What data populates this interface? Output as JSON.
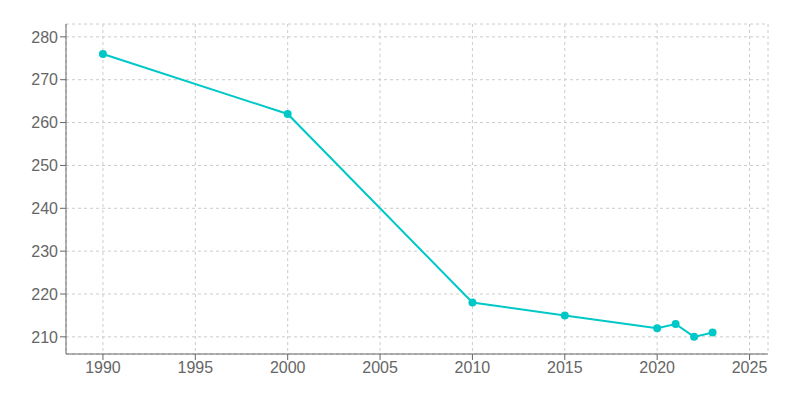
{
  "chart_data": {
    "type": "line",
    "x": [
      1990,
      2000,
      2010,
      2015,
      2020,
      2021,
      2022,
      2023
    ],
    "values": [
      276,
      262,
      218,
      215,
      212,
      213,
      210,
      211
    ],
    "color": "#00c8c8",
    "marker": "circle",
    "xlim": [
      1988,
      2026
    ],
    "ylim": [
      206,
      283
    ],
    "xticks": [
      1990,
      1995,
      2000,
      2005,
      2010,
      2015,
      2020,
      2025
    ],
    "yticks": [
      210,
      220,
      230,
      240,
      250,
      260,
      270,
      280
    ],
    "grid": true
  }
}
